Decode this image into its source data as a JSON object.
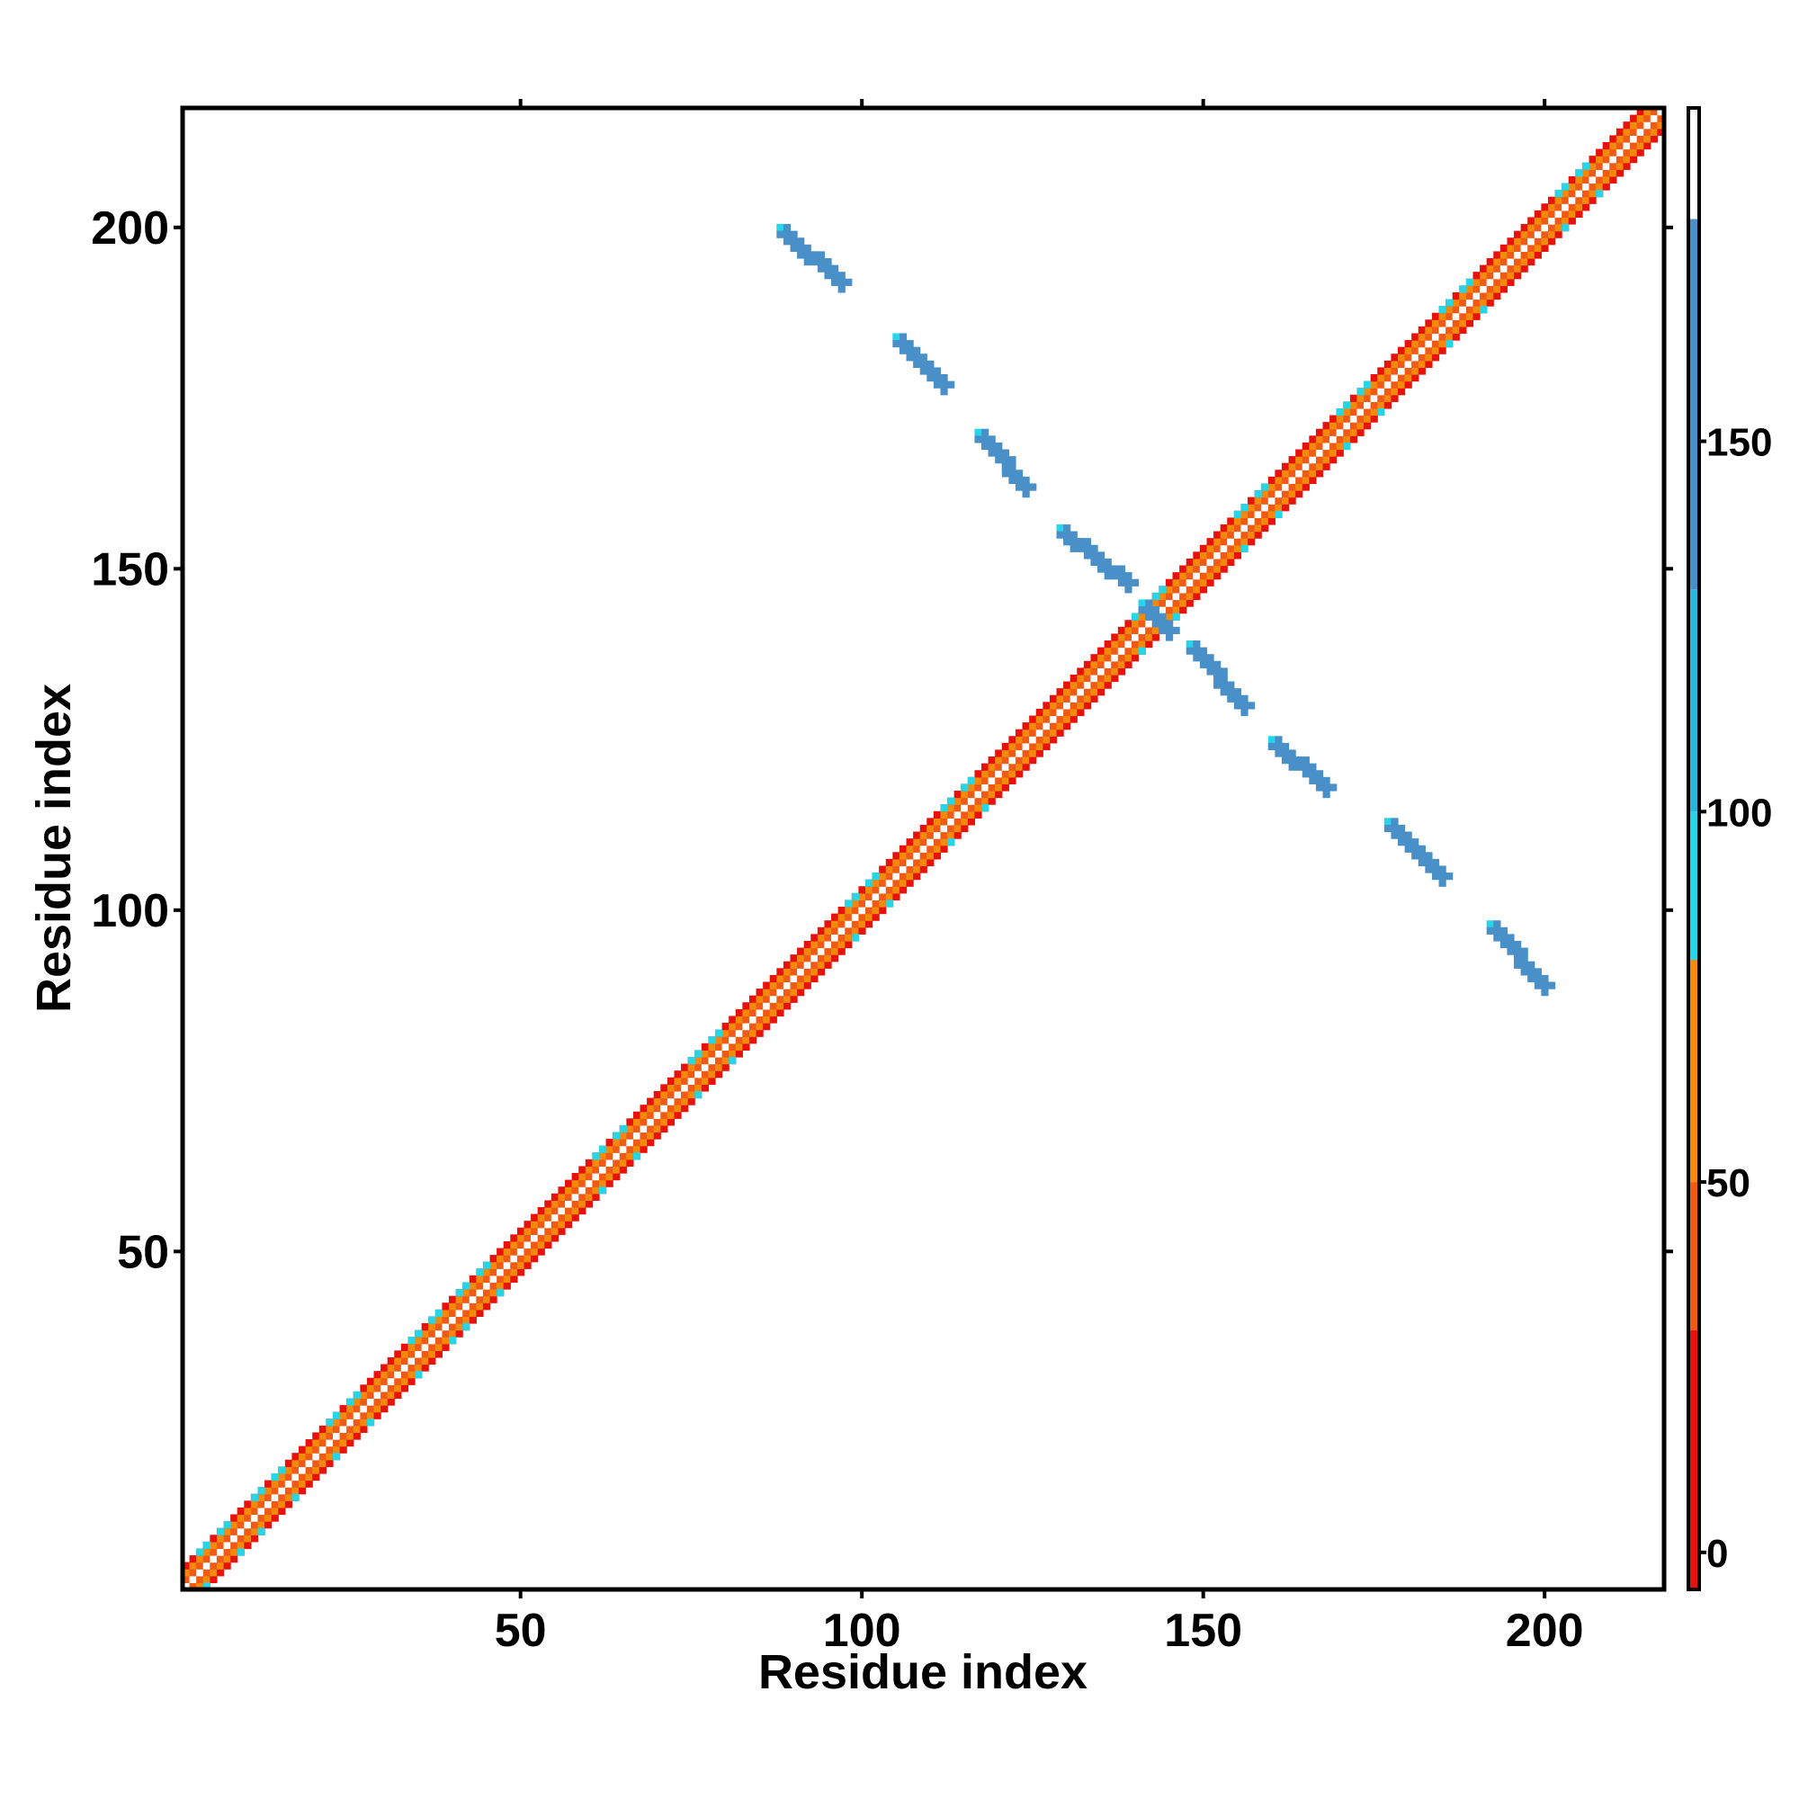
{
  "chart_data": {
    "type": "heatmap",
    "title": "",
    "xlabel": "Residue index",
    "ylabel": "Residue index",
    "xlim": [
      1,
      217
    ],
    "ylim": [
      1,
      217
    ],
    "xticks": [
      50,
      100,
      150,
      200
    ],
    "yticks": [
      50,
      100,
      150,
      200
    ],
    "xtick_labels": [
      "50",
      "100",
      "150",
      "200"
    ],
    "ytick_labels": [
      "50",
      "100",
      "150",
      "200"
    ],
    "colorbar": {
      "range": [
        -5,
        195
      ],
      "ticks": [
        0,
        50,
        100,
        150
      ],
      "tick_labels": [
        "0",
        "50",
        "100",
        "150"
      ],
      "segments": [
        {
          "from": -5,
          "to": 30,
          "color": "#e8120c"
        },
        {
          "from": 30,
          "to": 50,
          "color": "#f05a14"
        },
        {
          "from": 50,
          "to": 80,
          "color": "#f48a0a"
        },
        {
          "from": 80,
          "to": 100,
          "color": "#27d6e6"
        },
        {
          "from": 100,
          "to": 130,
          "color": "#2ab6dc"
        },
        {
          "from": 130,
          "to": 180,
          "color": "#4a90c8"
        },
        {
          "from": 180,
          "to": 195,
          "color": "#ffffff"
        }
      ]
    },
    "diagonal_band": {
      "from": 1,
      "to": 217,
      "offsets": [
        -3,
        -2,
        -1,
        0,
        1,
        2,
        3
      ],
      "offset_colors": [
        "#e8120c",
        "#f48a0a",
        "#f05a14",
        "#ffffff",
        "#f05a14",
        "#f48a0a",
        "#e8120c"
      ],
      "cyan_patches": [
        6,
        14,
        25,
        37,
        44,
        64,
        78,
        101,
        115,
        143,
        158,
        173,
        188,
        205
      ]
    },
    "antidiagonal_segments": [
      {
        "x_start": 88,
        "y_start": 200,
        "x_end": 97,
        "y_end": 192
      },
      {
        "x_start": 105,
        "y_start": 184,
        "x_end": 112,
        "y_end": 177
      },
      {
        "x_start": 117,
        "y_start": 170,
        "x_end": 124,
        "y_end": 162
      },
      {
        "x_start": 129,
        "y_start": 156,
        "x_end": 139,
        "y_end": 148
      },
      {
        "x_start": 141,
        "y_start": 145,
        "x_end": 145,
        "y_end": 141
      },
      {
        "x_start": 148,
        "y_start": 139,
        "x_end": 156,
        "y_end": 130
      },
      {
        "x_start": 160,
        "y_start": 125,
        "x_end": 168,
        "y_end": 118
      },
      {
        "x_start": 177,
        "y_start": 113,
        "x_end": 185,
        "y_end": 105
      },
      {
        "x_start": 192,
        "y_start": 98,
        "x_end": 200,
        "y_end": 89
      }
    ],
    "antidiagonal_color": "#4a90c8",
    "grid": false,
    "legend": "colorbar-right"
  }
}
